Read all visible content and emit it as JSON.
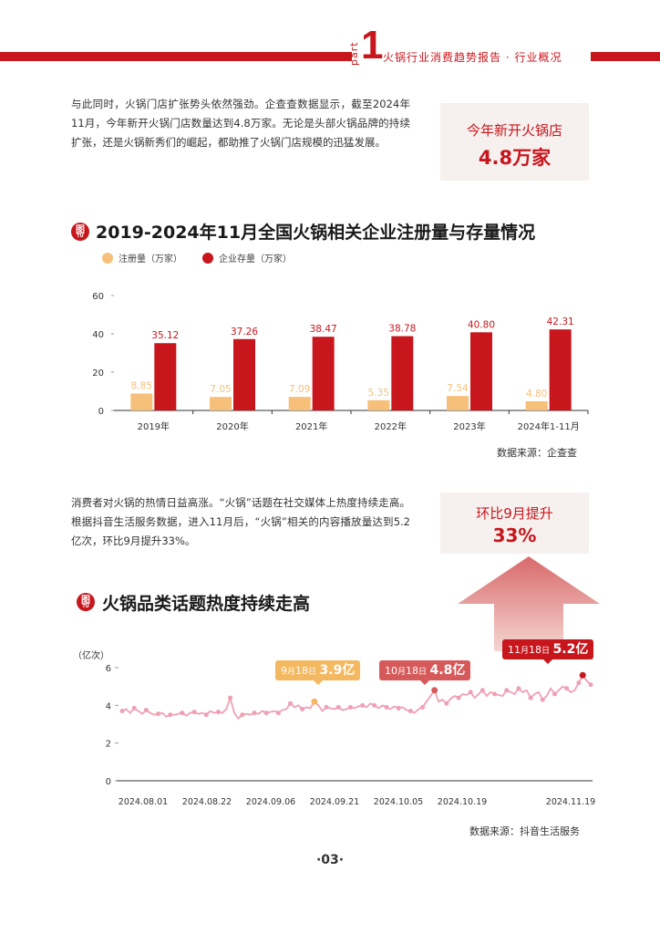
{
  "header": {
    "part_label": "part",
    "part_number": "1",
    "title": "火锅行业消费趋势报告 · 行业概况"
  },
  "para1": "与此同时，火锅门店扩张势头依然强劲。企查查数据显示，截至2024年11月，今年新开火锅门店数量达到4.8万家。无论是头部火锅品牌的持续扩张，还是火锅新秀们的崛起，都助推了火锅门店规模的迅猛发展。",
  "highlight1": {
    "label": "今年新开火锅店",
    "value": "4.8万家"
  },
  "section1": {
    "icon_text": "图",
    "icon_sub": "TU",
    "title": "2019-2024年11月全国火锅相关企业注册量与存量情况"
  },
  "colors": {
    "registration": "#f6c07a",
    "stock": "#c8161d",
    "brand_red": "#c8161d",
    "line": "#f0a0b4"
  },
  "chart_data": [
    {
      "type": "bar",
      "categories": [
        "2019年",
        "2020年",
        "2021年",
        "2022年",
        "2023年",
        "2024年1-11月"
      ],
      "series": [
        {
          "name": "注册量（万家）",
          "values": [
            8.85,
            7.05,
            7.09,
            5.35,
            7.54,
            4.8
          ],
          "labels": [
            "8.85",
            "7.05",
            "7.09",
            "5.35",
            "7.54",
            "4.80"
          ]
        },
        {
          "name": "企业存量（万家）",
          "values": [
            35.12,
            37.26,
            38.47,
            38.78,
            40.8,
            42.31
          ],
          "labels": [
            "35.12",
            "37.26",
            "38.47",
            "38.78",
            "40.80",
            "42.31"
          ]
        }
      ],
      "ylim": [
        0,
        60
      ],
      "yticks": [
        "0",
        "20",
        "40",
        "60"
      ],
      "legend_position": "top-left"
    },
    {
      "type": "line",
      "ylabel": "（亿次）",
      "ylim": [
        0,
        6
      ],
      "yticks": [
        "0",
        "2",
        "4",
        "6"
      ],
      "xticks": [
        "2024.08.01",
        "2024.08.22",
        "2024.09.06",
        "2024.09.21",
        "2024.10.05",
        "2024.10.19",
        "2024.11.19"
      ],
      "start": "2024.08.01",
      "end": "2024.11.21",
      "values": [
        3.7,
        3.8,
        3.6,
        3.85,
        3.7,
        3.55,
        3.75,
        3.6,
        3.5,
        3.55,
        3.6,
        3.4,
        3.5,
        3.5,
        3.55,
        3.6,
        3.45,
        3.6,
        3.65,
        3.55,
        3.6,
        3.5,
        3.7,
        3.6,
        3.65,
        3.6,
        3.8,
        4.4,
        3.6,
        3.3,
        3.5,
        3.55,
        3.5,
        3.6,
        3.55,
        3.7,
        3.6,
        3.65,
        3.7,
        3.6,
        3.75,
        3.8,
        4.1,
        3.9,
        4.0,
        3.8,
        3.9,
        3.85,
        4.2,
        4.0,
        3.7,
        3.9,
        3.85,
        3.8,
        3.9,
        3.75,
        3.8,
        3.9,
        3.85,
        3.95,
        4.0,
        3.9,
        4.1,
        4.0,
        3.85,
        4.0,
        3.9,
        3.8,
        3.95,
        3.85,
        3.9,
        3.75,
        3.7,
        3.6,
        3.8,
        3.9,
        4.2,
        4.5,
        4.8,
        4.2,
        4.3,
        4.1,
        4.35,
        4.5,
        4.4,
        4.6,
        4.55,
        4.7,
        4.4,
        4.6,
        4.8,
        4.5,
        4.7,
        4.6,
        4.55,
        4.5,
        4.8,
        4.7,
        4.6,
        4.9,
        4.7,
        4.8,
        4.4,
        4.6,
        4.7,
        4.3,
        4.5,
        4.9,
        4.6,
        4.8,
        5.0,
        4.9,
        4.7,
        4.8,
        5.2,
        5.6,
        5.3,
        5.1
      ]
    }
  ],
  "source1": "数据来源：企查查",
  "para2": "消费者对火锅的热情日益高涨。“火锅”话题在社交媒体上热度持续走高。根据抖音生活服务数据，进入11月后，“火锅”相关的内容播放量达到5.2亿次，环比9月提升33%。",
  "highlight2": {
    "label": "环比9月提升",
    "value": "33%"
  },
  "section2": {
    "icon_text": "图",
    "icon_sub": "TU",
    "title": "火锅品类话题热度持续走高"
  },
  "callouts": [
    {
      "month": "9",
      "m_unit": "月",
      "day": "18",
      "d_unit": "日",
      "value": "3.9亿"
    },
    {
      "month": "10",
      "m_unit": "月",
      "day": "18",
      "d_unit": "日",
      "value": "4.8亿"
    },
    {
      "month": "11",
      "m_unit": "月",
      "day": "18",
      "d_unit": "日",
      "value": "5.2亿"
    }
  ],
  "source2": "数据来源：抖音生活服务",
  "page_number": "·03·"
}
